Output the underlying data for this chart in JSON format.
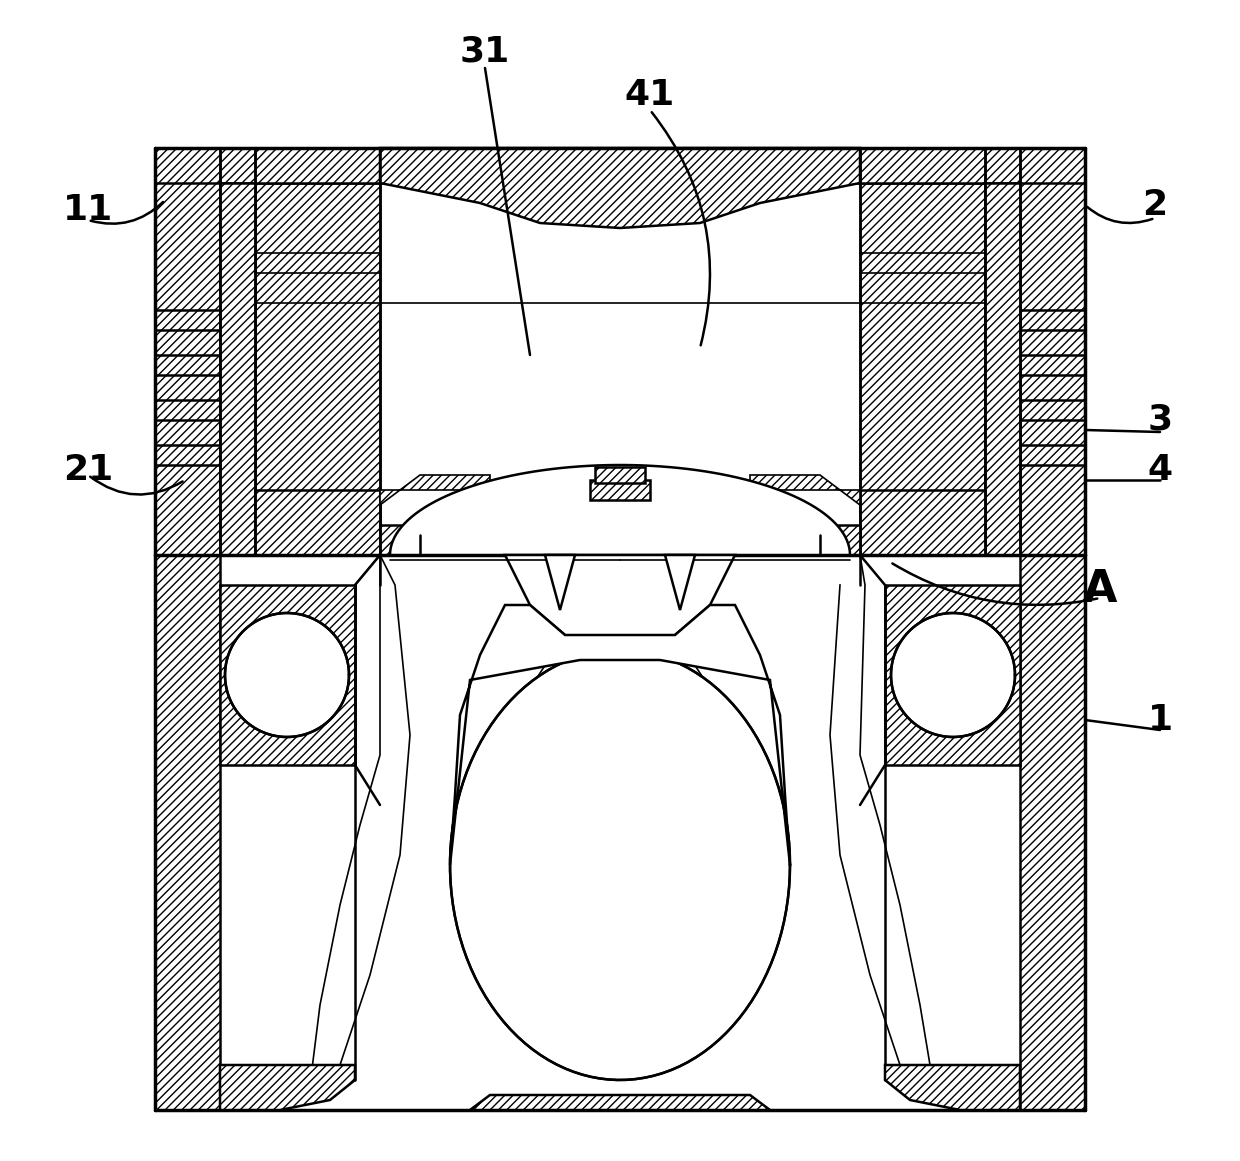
{
  "background_color": "#ffffff",
  "line_color": "#000000",
  "lw_thick": 2.5,
  "lw_med": 1.8,
  "lw_thin": 1.2,
  "label_fontsize": 26,
  "label_A_fontsize": 32,
  "fig_width": 12.4,
  "fig_height": 11.61
}
